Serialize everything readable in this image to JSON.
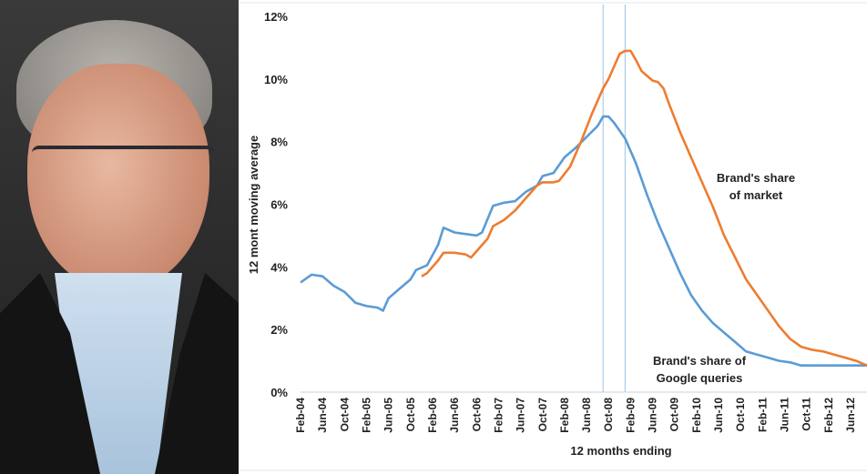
{
  "photo": {
    "subject": "portrait"
  },
  "chart_data": {
    "type": "line",
    "title": "",
    "xlabel": "12 months ending",
    "ylabel": "12 mont moving average",
    "ylim": [
      0,
      12
    ],
    "yticks": [
      "0%",
      "2%",
      "4%",
      "6%",
      "8%",
      "10%",
      "12%"
    ],
    "ytick_values": [
      0,
      2,
      4,
      6,
      8,
      10,
      12
    ],
    "xticks": [
      "Feb-04",
      "Jun-04",
      "Oct-04",
      "Feb-05",
      "Jun-05",
      "Oct-05",
      "Feb-06",
      "Jun-06",
      "Oct-06",
      "Feb-07",
      "Jun-07",
      "Oct-07",
      "Feb-08",
      "Jun-08",
      "Oct-08",
      "Feb-09",
      "Jun-09",
      "Oct-09",
      "Feb-10",
      "Jun-10",
      "Oct-10",
      "Feb-11",
      "Jun-11",
      "Oct-11",
      "Feb-12",
      "Jun-12"
    ],
    "grid": false,
    "vertical_lines": [
      "Sep-08",
      "Jan-09"
    ],
    "colors": {
      "google": "#5b9bd5",
      "market": "#ed7d31",
      "vline": "#9dc3e6"
    },
    "series": [
      {
        "name": "Brand's share of Google queries",
        "label_lines": [
          "Brand's share of",
          "Google queries"
        ],
        "x": [
          "Feb-04",
          "Apr-04",
          "Jun-04",
          "Aug-04",
          "Oct-04",
          "Dec-04",
          "Feb-05",
          "Apr-05",
          "May-05",
          "Jun-05",
          "Aug-05",
          "Oct-05",
          "Nov-05",
          "Jan-06",
          "Mar-06",
          "Apr-06",
          "Jun-06",
          "Aug-06",
          "Oct-06",
          "Nov-06",
          "Jan-07",
          "Mar-07",
          "May-07",
          "Jul-07",
          "Sep-07",
          "Oct-07",
          "Dec-07",
          "Feb-08",
          "Apr-08",
          "Jun-08",
          "Aug-08",
          "Sep-08",
          "Oct-08",
          "Nov-08",
          "Jan-09",
          "Mar-09",
          "May-09",
          "Jul-09",
          "Sep-09",
          "Nov-09",
          "Jan-10",
          "Mar-10",
          "May-10",
          "Jul-10",
          "Sep-10",
          "Nov-10",
          "Jan-11",
          "Mar-11",
          "May-11",
          "Jul-11",
          "Sep-11",
          "Nov-11",
          "Jan-12",
          "Mar-12",
          "May-12",
          "Jul-12",
          "Sep-12"
        ],
        "values": [
          3.5,
          3.75,
          3.7,
          3.4,
          3.2,
          2.85,
          2.75,
          2.7,
          2.6,
          3.0,
          3.3,
          3.6,
          3.9,
          4.05,
          4.7,
          5.25,
          5.1,
          5.05,
          5.0,
          5.1,
          5.95,
          6.05,
          6.1,
          6.4,
          6.6,
          6.9,
          7.0,
          7.5,
          7.8,
          8.15,
          8.5,
          8.8,
          8.8,
          8.6,
          8.1,
          7.3,
          6.3,
          5.4,
          4.6,
          3.8,
          3.1,
          2.6,
          2.2,
          1.9,
          1.6,
          1.3,
          1.2,
          1.1,
          1.0,
          0.95,
          0.85,
          0.85,
          0.85,
          0.85,
          0.85,
          0.85,
          0.85
        ]
      },
      {
        "name": "Brand's share of market",
        "label_lines": [
          "Brand's share",
          "of market"
        ],
        "x": [
          "Dec-05",
          "Jan-06",
          "Mar-06",
          "Apr-06",
          "Jun-06",
          "Aug-06",
          "Sep-06",
          "Oct-06",
          "Dec-06",
          "Jan-07",
          "Mar-07",
          "May-07",
          "Jul-07",
          "Sep-07",
          "Oct-07",
          "Dec-07",
          "Jan-08",
          "Mar-08",
          "May-08",
          "Jul-08",
          "Sep-08",
          "Oct-08",
          "Nov-08",
          "Dec-08",
          "Jan-09",
          "Feb-09",
          "Mar-09",
          "Apr-09",
          "May-09",
          "Jun-09",
          "Jul-09",
          "Aug-09",
          "Sep-09",
          "Nov-09",
          "Jan-10",
          "Mar-10",
          "May-10",
          "Jul-10",
          "Sep-10",
          "Nov-10",
          "Jan-11",
          "Mar-11",
          "May-11",
          "Jul-11",
          "Sep-11",
          "Nov-11",
          "Jan-12",
          "Mar-12",
          "May-12",
          "Jul-12",
          "Sep-12"
        ],
        "values": [
          3.7,
          3.8,
          4.2,
          4.45,
          4.45,
          4.4,
          4.3,
          4.5,
          4.9,
          5.3,
          5.5,
          5.8,
          6.2,
          6.6,
          6.7,
          6.7,
          6.75,
          7.2,
          8.0,
          8.9,
          9.7,
          10.0,
          10.4,
          10.8,
          10.9,
          10.9,
          10.6,
          10.25,
          10.1,
          9.95,
          9.9,
          9.7,
          9.2,
          8.3,
          7.5,
          6.7,
          5.9,
          5.0,
          4.3,
          3.6,
          3.1,
          2.6,
          2.1,
          1.7,
          1.45,
          1.35,
          1.3,
          1.2,
          1.1,
          1.0,
          0.85
        ]
      }
    ]
  }
}
